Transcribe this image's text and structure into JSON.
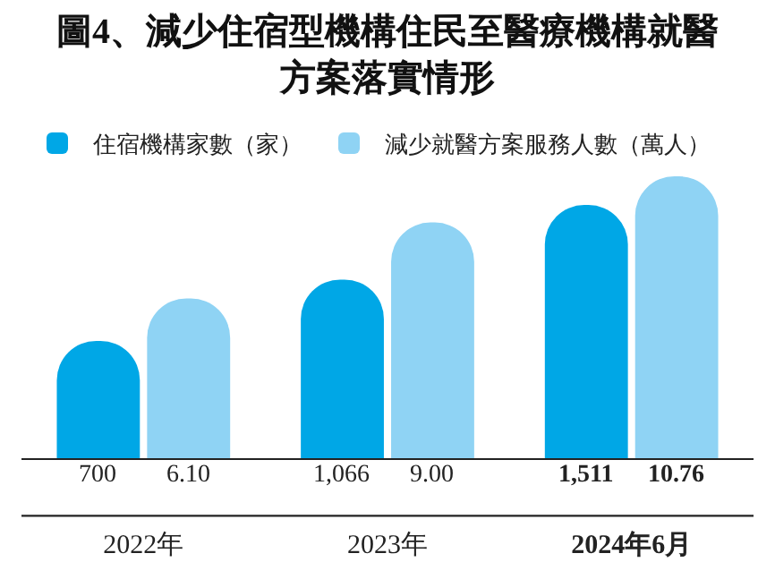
{
  "chart_data": {
    "type": "bar",
    "title": "圖4、減少住宿型機構住民至醫療機構就醫方案落實情形",
    "categories": [
      "2022年",
      "2023年",
      "2024年6月"
    ],
    "series": [
      {
        "name": "住宿機構家數（家）",
        "color": "#00a7e6",
        "values": [
          700,
          1066,
          1511
        ],
        "value_labels": [
          "700",
          "1,066",
          "1,511"
        ]
      },
      {
        "name": "減少就醫方案服務人數（萬人）",
        "color": "#8fd3f4",
        "values": [
          6.1,
          9.0,
          10.76
        ],
        "value_labels": [
          "6.10",
          "9.00",
          "10.76"
        ],
        "axis": "y2"
      }
    ],
    "ylim": [
      0,
      1720
    ],
    "y2lim": [
      0,
      11
    ],
    "tick_labels": "x",
    "legend": "top left",
    "grid": false
  }
}
